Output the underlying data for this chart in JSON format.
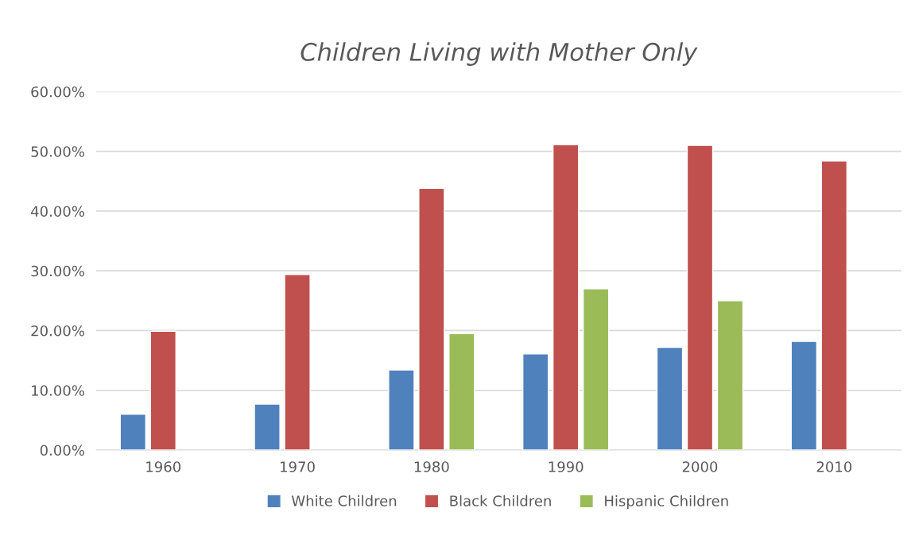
{
  "chart_data": {
    "type": "bar",
    "title": "Children Living with Mother Only",
    "categories": [
      "1960",
      "1970",
      "1980",
      "1990",
      "2000",
      "2010"
    ],
    "series": [
      {
        "name": "White Children",
        "color": "#4f81bd",
        "values": [
          6.0,
          7.7,
          13.4,
          16.1,
          17.2,
          18.2
        ]
      },
      {
        "name": "Black Children",
        "color": "#c0504d",
        "values": [
          19.9,
          29.4,
          43.8,
          51.1,
          51.0,
          48.4
        ]
      },
      {
        "name": "Hispanic Children",
        "color": "#9bbb59",
        "values": [
          null,
          null,
          19.5,
          27.0,
          25.0,
          null
        ]
      }
    ],
    "ylim": [
      0,
      60
    ],
    "yticks": [
      {
        "value": 0,
        "label": "0.00%"
      },
      {
        "value": 10,
        "label": "10.00%"
      },
      {
        "value": 20,
        "label": "20.00%"
      },
      {
        "value": 30,
        "label": "30.00%"
      },
      {
        "value": 40,
        "label": "40.00%"
      },
      {
        "value": 50,
        "label": "50.00%"
      },
      {
        "value": 60,
        "label": "60.00%"
      }
    ],
    "grid": "y",
    "legend": "bottom"
  }
}
